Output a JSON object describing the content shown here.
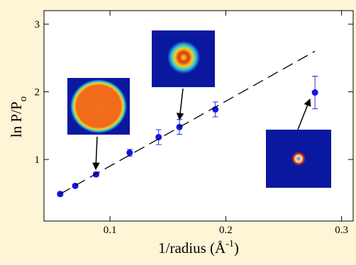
{
  "chart_data": {
    "type": "scatter",
    "xlabel": {
      "text": "1/radius (Å",
      "sup": "-1",
      "end": ")"
    },
    "ylabel": {
      "text": "ln P/P",
      "sub": "o"
    },
    "xlim": [
      0.043,
      0.31
    ],
    "ylim": [
      0.09,
      3.2
    ],
    "xticks": [
      0.1,
      0.2,
      0.3
    ],
    "yticks": [
      1,
      2,
      3
    ],
    "series": [
      {
        "color": "#1414e6",
        "x": [
          0.057,
          0.07,
          0.088,
          0.117,
          0.142,
          0.16,
          0.191,
          0.277
        ],
        "values": [
          0.49,
          0.61,
          0.78,
          1.1,
          1.33,
          1.48,
          1.74,
          1.99
        ],
        "errors": [
          0.03,
          0.02,
          0.03,
          0.05,
          0.11,
          0.11,
          0.11,
          0.24
        ]
      },
      {
        "type": "line",
        "color": "#000000",
        "dashed": true,
        "x": [
          0.057,
          0.277
        ],
        "values": [
          0.49,
          2.6
        ]
      }
    ]
  }
}
